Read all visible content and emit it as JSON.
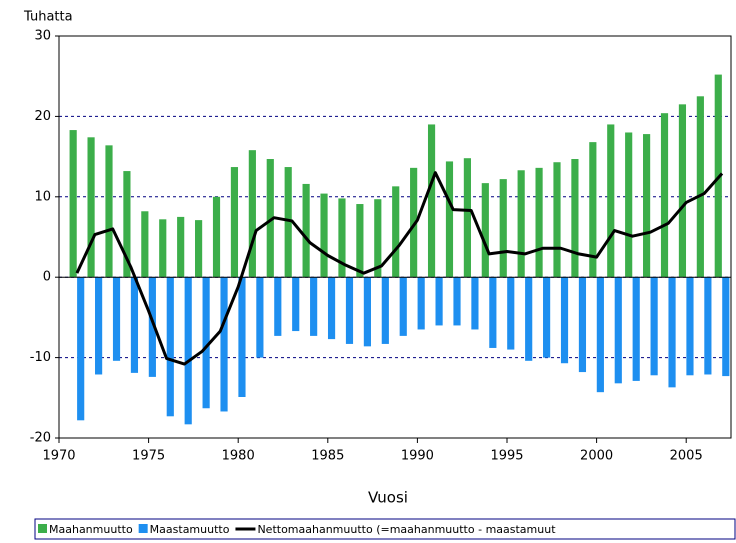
{
  "chart_data": {
    "type": "bar",
    "y_label": "Tuhatta",
    "x_label": "Vuosi",
    "x": [
      1971,
      1972,
      1973,
      1974,
      1975,
      1976,
      1977,
      1978,
      1979,
      1980,
      1981,
      1982,
      1983,
      1984,
      1985,
      1986,
      1987,
      1988,
      1989,
      1990,
      1991,
      1992,
      1993,
      1994,
      1995,
      1996,
      1997,
      1998,
      1999,
      2000,
      2001,
      2002,
      2003,
      2004,
      2005,
      2006,
      2007
    ],
    "series": [
      {
        "name": "Maahanmuutto",
        "color": "#3cae4a",
        "type": "bar",
        "values": [
          18.3,
          17.4,
          16.4,
          13.2,
          8.2,
          7.2,
          7.5,
          7.1,
          10.0,
          13.7,
          15.8,
          14.7,
          13.7,
          11.6,
          10.4,
          9.8,
          9.1,
          9.7,
          11.3,
          13.6,
          19.0,
          14.4,
          14.8,
          11.7,
          12.2,
          13.3,
          13.6,
          14.3,
          14.7,
          16.8,
          19.0,
          18.0,
          17.8,
          20.4,
          21.5,
          22.5,
          25.2
        ]
      },
      {
        "name": "Maastamuutto",
        "color": "#1e8ff0",
        "type": "bar",
        "values": [
          -17.8,
          -12.1,
          -10.4,
          -11.9,
          -12.4,
          -17.3,
          -18.3,
          -16.3,
          -16.7,
          -14.9,
          -10.0,
          -7.3,
          -6.7,
          -7.3,
          -7.7,
          -8.3,
          -8.6,
          -8.3,
          -7.3,
          -6.5,
          -6.0,
          -6.0,
          -6.5,
          -8.8,
          -9.0,
          -10.4,
          -10.0,
          -10.7,
          -11.8,
          -14.3,
          -13.2,
          -12.9,
          -12.2,
          -13.7,
          -12.2,
          -12.1,
          -12.3
        ]
      },
      {
        "name": "Nettomaahanmuutto (=maahanmuutto - maastamuut",
        "color": "#000000",
        "type": "line",
        "values": [
          0.5,
          5.3,
          6.0,
          1.3,
          -4.2,
          -10.1,
          -10.8,
          -9.2,
          -6.7,
          -1.2,
          5.8,
          7.4,
          7.0,
          4.3,
          2.7,
          1.5,
          0.5,
          1.4,
          4.0,
          7.1,
          13.0,
          8.4,
          8.3,
          2.9,
          3.2,
          2.9,
          3.6,
          3.6,
          2.9,
          2.5,
          5.8,
          5.1,
          5.6,
          6.7,
          9.3,
          10.4,
          12.9
        ]
      }
    ],
    "xlim": [
      1970,
      2007.5
    ],
    "xticks": [
      1970,
      1975,
      1980,
      1985,
      1990,
      1995,
      2000,
      2005
    ],
    "ylim": [
      -20,
      30
    ],
    "yticks": [
      -20,
      -10,
      0,
      10,
      20,
      30
    ],
    "grid": true
  }
}
